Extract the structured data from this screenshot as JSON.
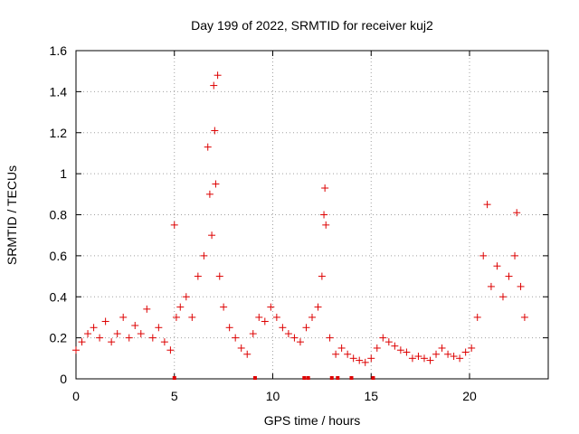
{
  "chart_data": {
    "type": "scatter",
    "title": "Day 199 of 2022, SRMTID for receiver kuj2",
    "xlabel": "GPS time / hours",
    "ylabel": "SRMTID / TECUs",
    "xlim": [
      0,
      24
    ],
    "ylim": [
      0,
      1.6
    ],
    "x_ticks": [
      0,
      5,
      10,
      15,
      20
    ],
    "y_ticks": [
      0,
      0.2,
      0.4,
      0.6,
      0.8,
      1,
      1.2,
      1.4,
      1.6
    ],
    "x_tick_labels": [
      "0",
      "5",
      "10",
      "15",
      "20"
    ],
    "y_tick_labels": [
      "0",
      "0.2",
      "0.4",
      "0.6",
      "0.8",
      "1",
      "1.2",
      "1.4",
      "1.6"
    ],
    "grid": true,
    "marker": "+",
    "series": [
      {
        "name": "SRMTID",
        "color": "#dd0000",
        "x": [
          0.0,
          0.3,
          0.6,
          0.9,
          1.2,
          1.5,
          1.8,
          2.1,
          2.4,
          2.7,
          3.0,
          3.3,
          3.6,
          3.9,
          4.2,
          4.5,
          4.8,
          5.0,
          5.1,
          5.3,
          5.6,
          5.9,
          6.2,
          6.5,
          6.7,
          6.8,
          6.9,
          7.0,
          7.05,
          7.1,
          7.2,
          7.3,
          7.5,
          7.8,
          8.1,
          8.4,
          8.7,
          9.0,
          9.3,
          9.6,
          9.9,
          10.2,
          10.5,
          10.8,
          11.1,
          11.4,
          11.7,
          12.0,
          12.3,
          12.5,
          12.6,
          12.65,
          12.7,
          12.9,
          13.2,
          13.5,
          13.8,
          14.1,
          14.4,
          14.7,
          15.0,
          15.3,
          15.6,
          15.9,
          16.2,
          16.5,
          16.8,
          17.1,
          17.4,
          17.7,
          18.0,
          18.3,
          18.6,
          18.9,
          19.2,
          19.5,
          19.8,
          20.1,
          20.4,
          20.7,
          20.9,
          21.1,
          21.4,
          21.7,
          22.0,
          22.3,
          22.4,
          22.6,
          22.8
        ],
        "y": [
          0.14,
          0.18,
          0.22,
          0.25,
          0.2,
          0.28,
          0.18,
          0.22,
          0.3,
          0.2,
          0.26,
          0.22,
          0.34,
          0.2,
          0.25,
          0.18,
          0.14,
          0.75,
          0.3,
          0.35,
          0.4,
          0.3,
          0.5,
          0.6,
          1.13,
          0.9,
          0.7,
          1.43,
          1.21,
          0.95,
          1.48,
          0.5,
          0.35,
          0.25,
          0.2,
          0.15,
          0.12,
          0.22,
          0.3,
          0.28,
          0.35,
          0.3,
          0.25,
          0.22,
          0.2,
          0.18,
          0.25,
          0.3,
          0.35,
          0.5,
          0.8,
          0.93,
          0.75,
          0.2,
          0.12,
          0.15,
          0.12,
          0.1,
          0.09,
          0.08,
          0.1,
          0.15,
          0.2,
          0.18,
          0.16,
          0.14,
          0.13,
          0.1,
          0.11,
          0.1,
          0.09,
          0.12,
          0.15,
          0.12,
          0.11,
          0.1,
          0.13,
          0.15,
          0.3,
          0.6,
          0.85,
          0.45,
          0.55,
          0.4,
          0.5,
          0.6,
          0.81,
          0.45,
          0.3
        ]
      }
    ],
    "baseline_markers_x": [
      5.0,
      9.1,
      11.6,
      11.8,
      13.0,
      13.3,
      14.0,
      15.1
    ]
  }
}
